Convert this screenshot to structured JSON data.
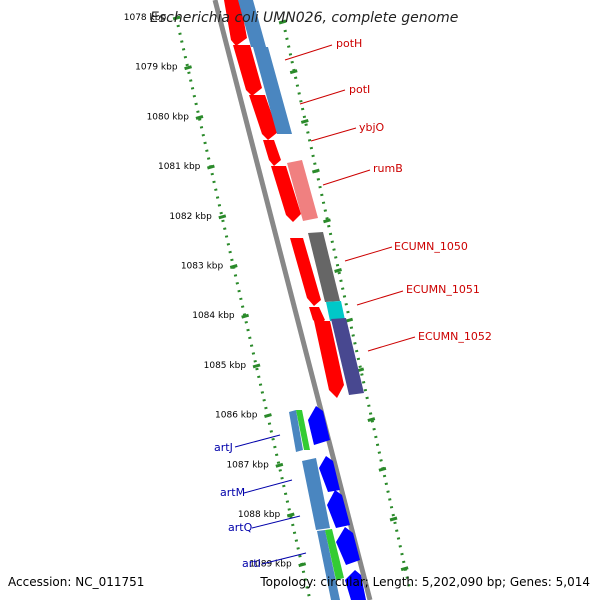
{
  "title": "Escherichia coli UMN026, complete genome",
  "footer": {
    "accession": "Accession: NC_011751",
    "summary": "Topology: circular; Length: 5,202,090 bp; Genes: 5,014"
  },
  "colors": {
    "backbone": "#888888",
    "tick_dots": "#2a8a2a",
    "forward_label": "#cc0000",
    "reverse_label": "#0000aa"
  },
  "kbp_labels": [
    "1078 kbp",
    "1079 kbp",
    "1080 kbp",
    "1081 kbp",
    "1082 kbp",
    "1083 kbp",
    "1084 kbp",
    "1085 kbp",
    "1086 kbp",
    "1087 kbp",
    "1088 kbp",
    "1089 kbp"
  ],
  "forward_genes": [
    {
      "label": "potH",
      "color": "#4a86c0"
    },
    {
      "label": "potI",
      "color": "#4a86c0"
    },
    {
      "label": "ybjO",
      "color": "#ff0000"
    },
    {
      "label": "rumB",
      "color": "#f08080"
    },
    {
      "label": "ECUMN_1050",
      "color": "#666666"
    },
    {
      "label": "ECUMN_1051",
      "color": "#00c8c8"
    },
    {
      "label": "ECUMN_1052",
      "color": "#484890"
    }
  ],
  "reverse_genes": [
    {
      "label": "artJ",
      "color": "#4a86c0"
    },
    {
      "label": "artM",
      "color": "#4a86c0"
    },
    {
      "label": "artQ",
      "color": "#4a86c0"
    },
    {
      "label": "artI",
      "color": "#33cc33"
    }
  ]
}
